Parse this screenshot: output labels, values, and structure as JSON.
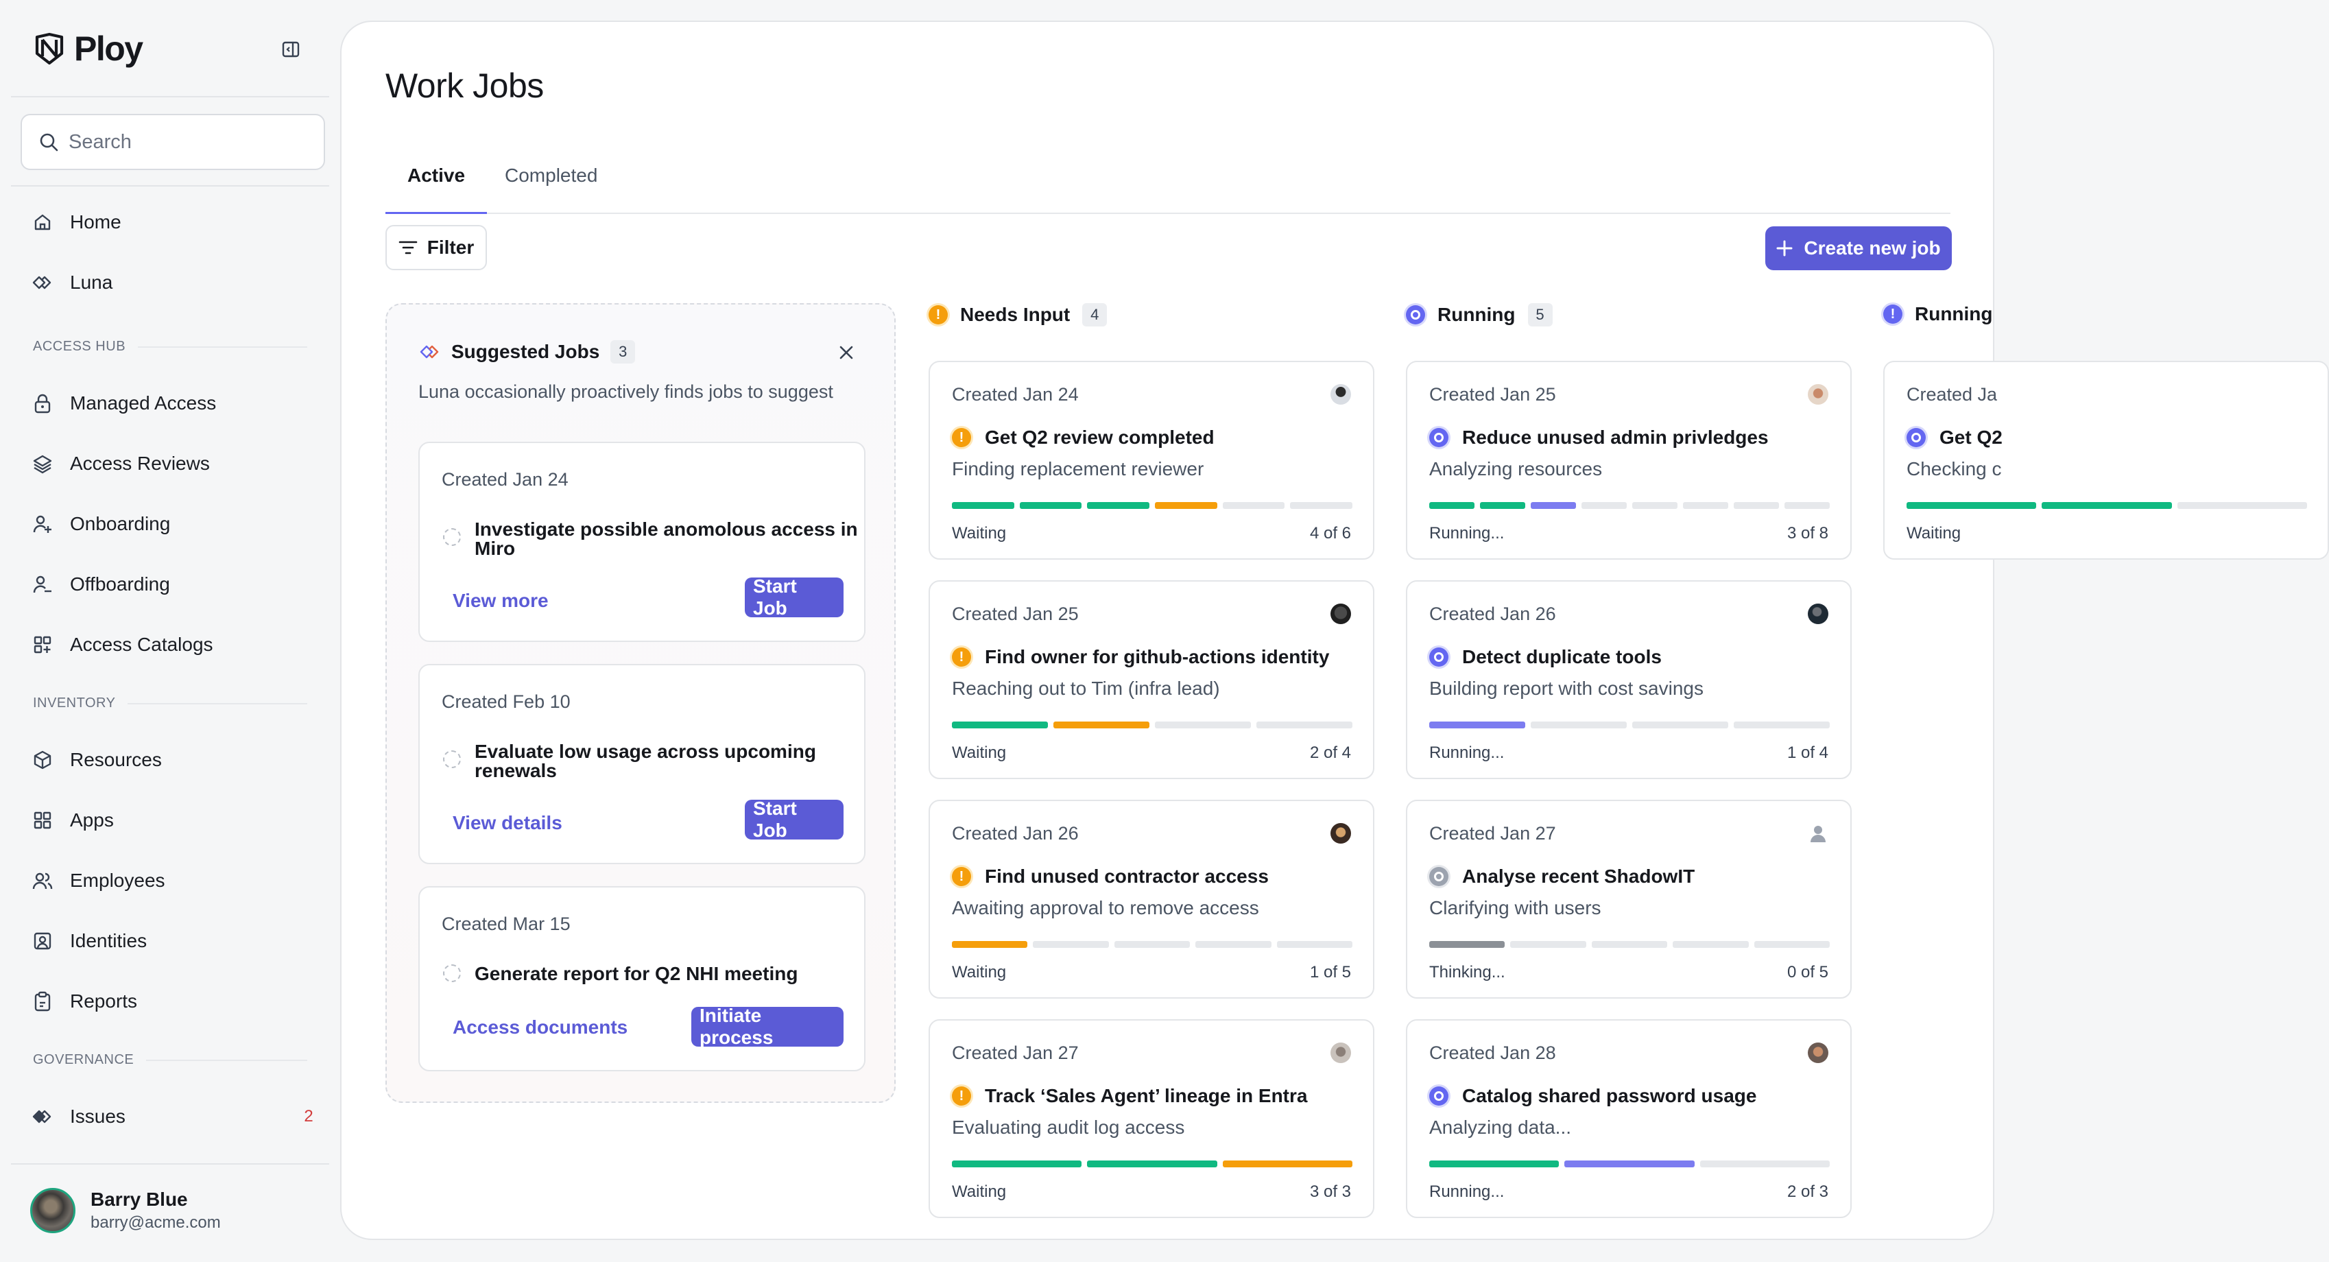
{
  "app": {
    "name": "Ploy"
  },
  "sidebar": {
    "search_placeholder": "Search",
    "top_items": [
      {
        "label": "Home",
        "icon": "home-icon"
      },
      {
        "label": "Luna",
        "icon": "luna-icon"
      }
    ],
    "sections": [
      {
        "title": "ACCESS HUB",
        "items": [
          {
            "label": "Managed Access",
            "icon": "lock-icon"
          },
          {
            "label": "Access Reviews",
            "icon": "layers-icon"
          },
          {
            "label": "Onboarding",
            "icon": "user-plus-icon"
          },
          {
            "label": "Offboarding",
            "icon": "user-minus-icon"
          },
          {
            "label": "Access Catalogs",
            "icon": "grid-plus-icon"
          }
        ]
      },
      {
        "title": "INVENTORY",
        "items": [
          {
            "label": "Resources",
            "icon": "cube-icon"
          },
          {
            "label": "Apps",
            "icon": "apps-grid-icon"
          },
          {
            "label": "Employees",
            "icon": "users-icon"
          },
          {
            "label": "Identities",
            "icon": "id-badge-icon"
          },
          {
            "label": "Reports",
            "icon": "clipboard-icon"
          }
        ]
      },
      {
        "title": "GOVERNANCE",
        "items": [
          {
            "label": "Issues",
            "icon": "issues-icon",
            "count": "2"
          }
        ]
      }
    ],
    "user": {
      "name": "Barry Blue",
      "email": "barry@acme.com"
    }
  },
  "main": {
    "title": "Work Jobs",
    "tabs": [
      {
        "label": "Active",
        "active": true
      },
      {
        "label": "Completed",
        "active": false
      }
    ],
    "filter_label": "Filter",
    "create_label": "Create new job"
  },
  "suggested": {
    "title": "Suggested Jobs",
    "count": "3",
    "subtitle": "Luna occasionally proactively finds jobs to suggest",
    "cards": [
      {
        "created": "Created Jan 24",
        "title_lines": [
          "Investigate possible  anomolous access in",
          "Miro"
        ],
        "link": "View more",
        "action": "Start Job"
      },
      {
        "created": "Created Feb 10",
        "title_lines": [
          "Evaluate low usage across upcoming",
          "renewals"
        ],
        "link": "View details",
        "action": "Start Job"
      },
      {
        "created": "Created Mar 15",
        "title_lines": [
          "Generate report for Q2 NHI meeting"
        ],
        "link": "Access documents",
        "action": "Initiate process"
      }
    ]
  },
  "columns": [
    {
      "label": "Needs Input",
      "count": "4",
      "kind": "warn",
      "jobs": [
        {
          "created": "Created Jan 24",
          "title": "Get Q2 review completed",
          "subtitle": "Finding replacement reviewer",
          "status": "Waiting",
          "progress": "4 of 6",
          "kind": "warn",
          "bar": [
            "g",
            "g",
            "g",
            "o",
            "e",
            "e"
          ],
          "avatar": "person-a"
        },
        {
          "created": "Created Jan 25",
          "title": "Find  owner for github-actions identity",
          "subtitle": "Reaching out to Tim (infra lead)",
          "status": "Waiting",
          "progress": "2 of 4",
          "kind": "warn",
          "bar": [
            "g",
            "o",
            "e",
            "e"
          ],
          "avatar": "person-b"
        },
        {
          "created": "Created Jan 26",
          "title": "Find unused contractor access",
          "subtitle": "Awaiting approval to remove access",
          "status": "Waiting",
          "progress": "1 of 5",
          "kind": "warn",
          "bar": [
            "o",
            "e",
            "e",
            "e",
            "e"
          ],
          "avatar": "person-c"
        },
        {
          "created": "Created Jan 27",
          "title": "Track ‘Sales Agent’ lineage in Entra",
          "subtitle": "Evaluating audit log access",
          "status": "Waiting",
          "progress": "3 of 3",
          "kind": "warn",
          "bar": [
            "g",
            "g",
            "o"
          ],
          "avatar": "person-d"
        }
      ]
    },
    {
      "label": "Running",
      "count": "5",
      "kind": "run",
      "jobs": [
        {
          "created": "Created Jan 25",
          "title": "Reduce unused admin privledges",
          "subtitle": "Analyzing resources",
          "status": "Running...",
          "progress": "3 of 8",
          "kind": "run",
          "bar": [
            "g",
            "g",
            "p",
            "e",
            "e",
            "e",
            "e",
            "e"
          ],
          "avatar": "person-e"
        },
        {
          "created": "Created Jan 26",
          "title": "Detect duplicate tools",
          "subtitle": "Building report with cost savings",
          "status": "Running...",
          "progress": "1 of 4",
          "kind": "run",
          "bar": [
            "p",
            "e",
            "e",
            "e"
          ],
          "avatar": "person-f"
        },
        {
          "created": "Created Jan 27",
          "title": "Analyse recent ShadowIT",
          "subtitle": "Clarifying with users",
          "status": "Thinking...",
          "progress": "0 of 5",
          "kind": "think",
          "bar": [
            "k",
            "e",
            "e",
            "e",
            "e"
          ],
          "avatar": "placeholder"
        },
        {
          "created": "Created Jan 28",
          "title": "Catalog shared password usage",
          "subtitle": "Analyzing data...",
          "status": "Running...",
          "progress": "2 of 3",
          "kind": "run",
          "bar": [
            "g",
            "p",
            "e"
          ],
          "avatar": "person-g"
        }
      ]
    },
    {
      "label": "Running",
      "count": "",
      "kind": "run",
      "jobs": [
        {
          "created": "Created Ja",
          "title": "Get Q2",
          "subtitle": "Checking c",
          "status": "Waiting",
          "progress": "",
          "kind": "run",
          "bar": [
            "g",
            "g",
            "e"
          ],
          "avatar": ""
        }
      ]
    }
  ],
  "colors": {
    "accent": "#5b5bd6",
    "warn": "#f59e0b",
    "green": "#10b981",
    "running": "#6366f1"
  }
}
